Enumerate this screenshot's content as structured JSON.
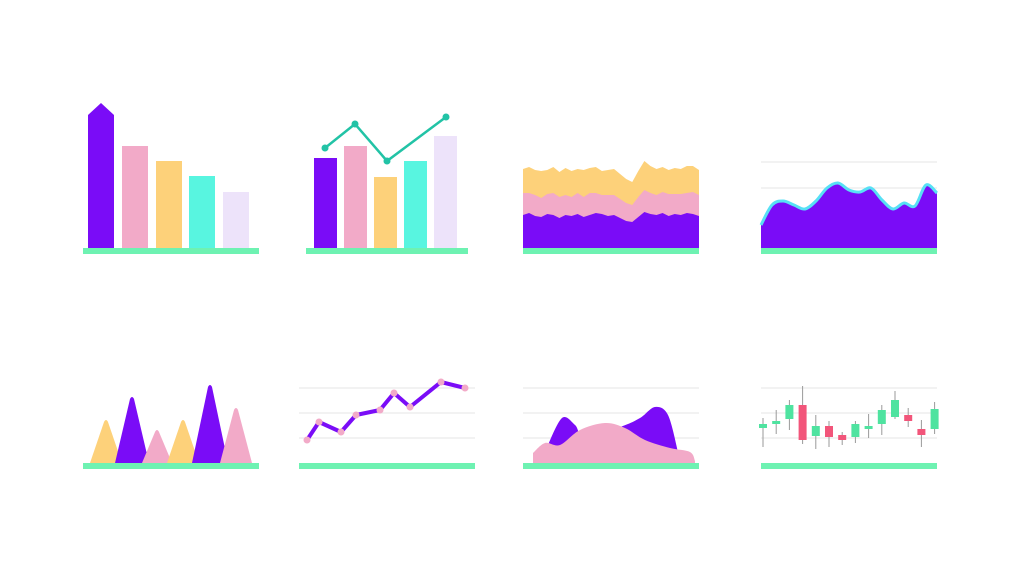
{
  "colors": {
    "purple": "#7a0cf7",
    "pink": "#f2aac8",
    "yellow": "#fdd17a",
    "cyan": "#58f5e0",
    "lavender": "#ede3fa",
    "green": "#6ef2b2",
    "teal": "#22c3a6",
    "grid": "#e6e6e6",
    "red": "#f2557a",
    "candle_green": "#4fe3a0",
    "outline": "#57e0f5"
  },
  "chart_data": [
    {
      "type": "bar",
      "ylim": [
        0,
        150
      ],
      "values": [
        145,
        102,
        87,
        72,
        56
      ],
      "bar_colors": [
        "purple",
        "pink",
        "yellow",
        "cyan",
        "lavender"
      ],
      "first_bar_arrow": true
    },
    {
      "type": "bar+line",
      "ylim": [
        0,
        150
      ],
      "values": [
        90,
        102,
        71,
        87,
        112
      ],
      "bar_colors": [
        "purple",
        "pink",
        "yellow",
        "cyan",
        "lavender"
      ],
      "line": [
        100,
        124,
        87,
        131
      ]
    },
    {
      "type": "area",
      "stacked": true,
      "ylim": [
        0,
        100
      ],
      "series": [
        {
          "color": "purple",
          "values": [
            33,
            35,
            32,
            31,
            34,
            33,
            30,
            33,
            32,
            34,
            31,
            33,
            35,
            34,
            32,
            33,
            30,
            27,
            26,
            31,
            36,
            34,
            33,
            35,
            32,
            34,
            33,
            35,
            34,
            32
          ]
        },
        {
          "color": "pink",
          "values": [
            22,
            20,
            21,
            19,
            20,
            22,
            21,
            20,
            19,
            21,
            20,
            22,
            20,
            19,
            21,
            20,
            19,
            18,
            17,
            20,
            22,
            21,
            20,
            21,
            22,
            20,
            21,
            20,
            22,
            21
          ]
        },
        {
          "color": "yellow",
          "values": [
            24,
            26,
            25,
            27,
            24,
            26,
            25,
            27,
            26,
            24,
            27,
            25,
            26,
            24,
            25,
            26,
            25,
            24,
            23,
            26,
            29,
            27,
            26,
            25,
            24,
            26,
            25,
            27,
            26,
            25
          ]
        }
      ]
    },
    {
      "type": "area",
      "ylim": [
        0,
        100
      ],
      "gridlines": 2,
      "values": [
        23,
        43,
        47,
        43,
        39,
        47,
        60,
        65,
        58,
        56,
        60,
        48,
        39,
        45,
        42,
        63,
        55
      ]
    },
    {
      "type": "triangles",
      "ylim": [
        0,
        80
      ],
      "peaks": [
        {
          "color": "yellow",
          "value": 43
        },
        {
          "color": "purple",
          "value": 66
        },
        {
          "color": "pink",
          "value": 33
        },
        {
          "color": "yellow",
          "value": 43
        },
        {
          "color": "purple",
          "value": 78
        },
        {
          "color": "pink",
          "value": 55
        }
      ]
    },
    {
      "type": "line",
      "ylim": [
        0,
        80
      ],
      "gridlines": 3,
      "values": [
        23,
        41,
        31,
        48,
        53,
        70,
        56,
        81,
        75
      ]
    },
    {
      "type": "area",
      "ylim": [
        0,
        80
      ],
      "gridlines": 3,
      "series": [
        {
          "color": "purple",
          "x": [
            24,
            39,
            52,
            62,
            97,
            117,
            132,
            145,
            155
          ],
          "values": [
            16,
            45,
            38,
            26,
            36,
            45,
            56,
            48,
            11
          ]
        },
        {
          "color": "pink",
          "x": [
            10,
            22,
            37,
            57,
            82,
            102,
            122,
            147,
            167,
            172
          ],
          "values": [
            10,
            20,
            18,
            33,
            40,
            35,
            23,
            15,
            11,
            2
          ]
        }
      ]
    },
    {
      "type": "candlestick",
      "ylim": [
        0,
        80
      ],
      "gridlines": 3,
      "ohlc": [
        [
          35,
          39,
          45,
          16
        ],
        [
          39,
          42,
          53,
          29
        ],
        [
          44,
          58,
          63,
          33
        ],
        [
          58,
          23,
          77,
          19
        ],
        [
          27,
          37,
          48,
          14
        ],
        [
          37,
          26,
          42,
          16
        ],
        [
          28,
          23,
          31,
          18
        ],
        [
          26,
          39,
          42,
          20
        ],
        [
          34,
          37,
          49,
          25
        ],
        [
          39,
          53,
          58,
          28
        ],
        [
          46,
          63,
          72,
          44
        ],
        [
          48,
          42,
          55,
          36
        ],
        [
          34,
          28,
          43,
          16
        ],
        [
          34,
          54,
          61,
          29
        ]
      ]
    }
  ]
}
